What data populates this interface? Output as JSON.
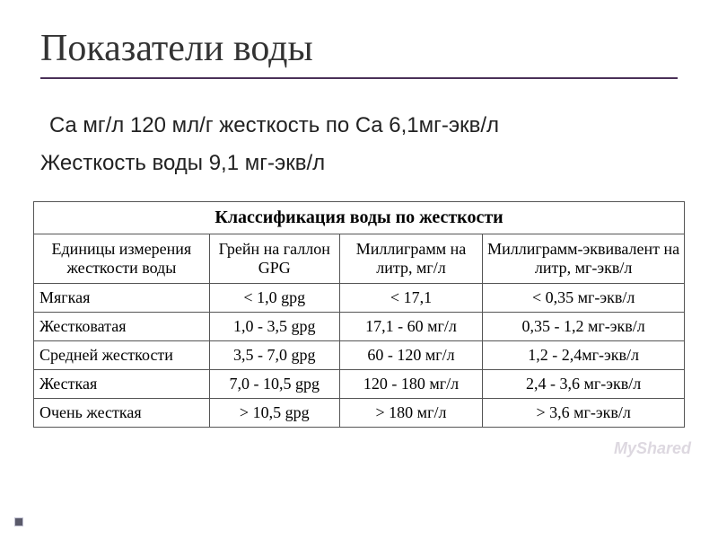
{
  "title": "Показатели воды",
  "subtitle1": "Ca мг/л  120 мл/г жесткость по Ca 6,1мг-экв/л",
  "subtitle2": "Жесткость воды   9,1 мг-экв/л",
  "table": {
    "title": "Классификация воды по жесткости",
    "columns": [
      "Единицы измерения жесткости воды",
      "Грейн на галлон GPG",
      "Миллиграмм на литр, мг/л",
      "Миллиграмм-эквивалент на литр, мг-экв/л"
    ],
    "rows": [
      [
        "Мягкая",
        "< 1,0 gpg",
        "< 17,1",
        "< 0,35 мг-экв/л"
      ],
      [
        "Жестковатая",
        "1,0 - 3,5 gpg",
        "17,1 - 60 мг/л",
        "0,35 - 1,2 мг-экв/л"
      ],
      [
        "Средней жесткости",
        "3,5 - 7,0 gpg",
        "60 - 120 мг/л",
        "1,2 - 2,4мг-экв/л"
      ],
      [
        "Жесткая",
        "7,0 - 10,5 gpg",
        "120 - 180 мг/л",
        "2,4 - 3,6 мг-экв/л"
      ],
      [
        "Очень жесткая",
        "> 10,5 gpg",
        "> 180 мг/л",
        "> 3,6 мг-экв/л"
      ]
    ],
    "col_widths": [
      "27%",
      "20%",
      "22%",
      "31%"
    ],
    "border_color": "#555555",
    "header_fontsize": 18,
    "body_fontsize": 18,
    "title_fontsize": 20
  },
  "watermark": "MyShared",
  "colors": {
    "title": "#333333",
    "underline": "#4a3158",
    "text": "#222222",
    "table_text": "#000000",
    "background": "#ffffff"
  }
}
